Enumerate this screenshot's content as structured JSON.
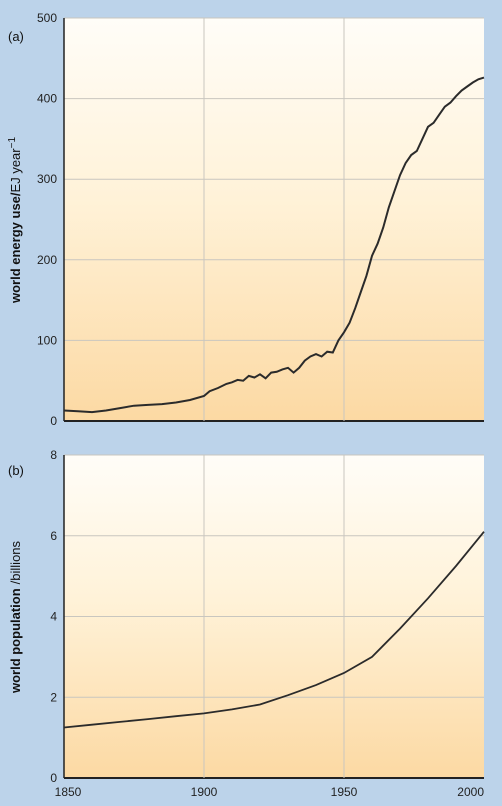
{
  "chart_data": [
    {
      "type": "line",
      "panel_label": "(a)",
      "ylabel_main": "world energy use/",
      "ylabel_unit": "EJ year",
      "ylabel_sup": "−1",
      "xlabel": "",
      "xlim": [
        1850,
        2000
      ],
      "ylim": [
        0,
        500
      ],
      "y_ticks": [
        0,
        100,
        200,
        300,
        400,
        500
      ],
      "x_gridlines": [
        1900,
        1950
      ],
      "grid": true,
      "series": [
        {
          "x": [
            1850,
            1855,
            1860,
            1865,
            1870,
            1875,
            1880,
            1885,
            1890,
            1895,
            1900,
            1902,
            1905,
            1908,
            1910,
            1912,
            1914,
            1916,
            1918,
            1920,
            1922,
            1924,
            1926,
            1928,
            1930,
            1932,
            1934,
            1936,
            1938,
            1940,
            1942,
            1944,
            1946,
            1948,
            1950,
            1952,
            1954,
            1956,
            1958,
            1960,
            1962,
            1964,
            1966,
            1968,
            1970,
            1972,
            1974,
            1976,
            1978,
            1980,
            1982,
            1984,
            1986,
            1988,
            1990,
            1992,
            1994,
            1996,
            1998,
            2000
          ],
          "y": [
            13,
            12,
            11,
            13,
            16,
            19,
            20,
            21,
            23,
            26,
            31,
            37,
            41,
            46,
            48,
            51,
            50,
            56,
            54,
            58,
            53,
            60,
            61,
            64,
            66,
            60,
            66,
            75,
            80,
            83,
            80,
            86,
            85,
            100,
            110,
            122,
            140,
            160,
            180,
            205,
            220,
            240,
            265,
            285,
            305,
            320,
            330,
            335,
            350,
            365,
            370,
            380,
            390,
            395,
            403,
            410,
            415,
            420,
            424,
            426
          ]
        }
      ]
    },
    {
      "type": "line",
      "panel_label": "(b)",
      "ylabel_main": "world population",
      "ylabel_unit": "/billions",
      "xlabel": "",
      "xlim": [
        1850,
        2000
      ],
      "ylim": [
        0,
        8
      ],
      "x_ticks": [
        1850,
        1900,
        1950,
        2000
      ],
      "y_ticks": [
        0,
        2,
        4,
        6,
        8
      ],
      "x_gridlines": [
        1900,
        1950
      ],
      "grid": true,
      "series": [
        {
          "x": [
            1850,
            1860,
            1870,
            1880,
            1890,
            1900,
            1910,
            1920,
            1930,
            1940,
            1950,
            1960,
            1970,
            1980,
            1990,
            2000
          ],
          "y": [
            1.25,
            1.32,
            1.39,
            1.46,
            1.53,
            1.6,
            1.7,
            1.82,
            2.05,
            2.3,
            2.6,
            3.0,
            3.7,
            4.45,
            5.25,
            6.1
          ]
        }
      ]
    }
  ]
}
